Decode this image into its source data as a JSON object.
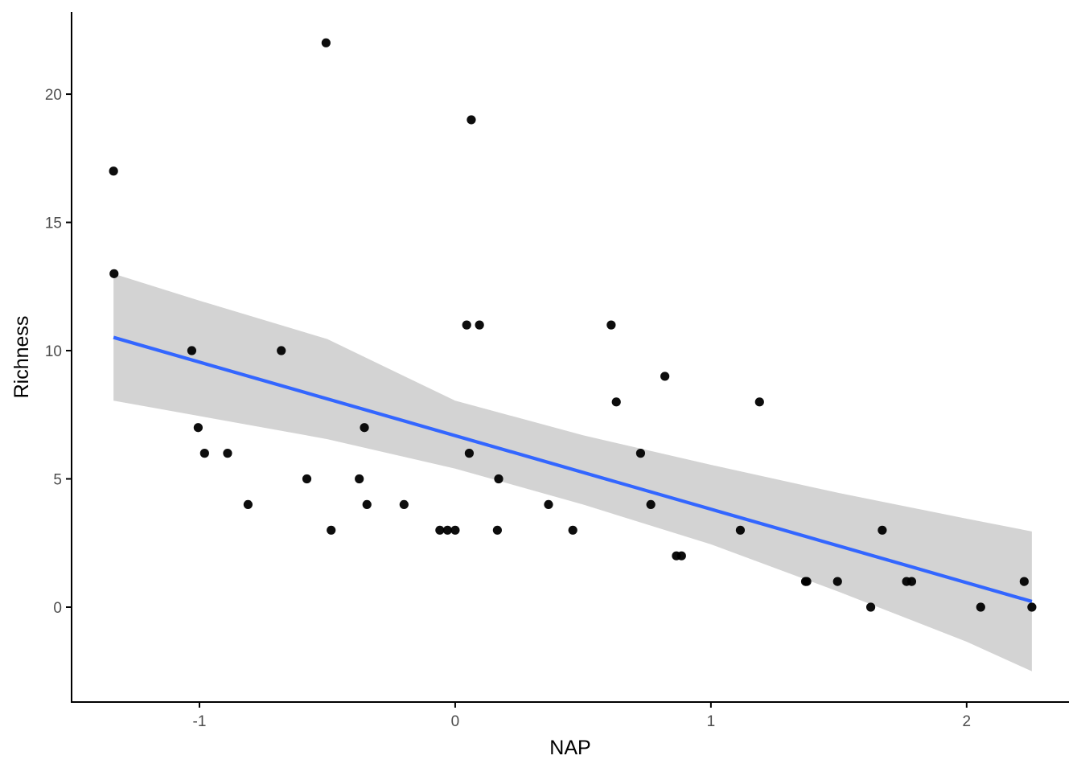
{
  "chart_data": {
    "type": "scatter",
    "xlabel": "NAP",
    "ylabel": "Richness",
    "xlim": [
      -1.5,
      2.4
    ],
    "ylim": [
      -3.7,
      23.2
    ],
    "xticks": [
      {
        "value": -1,
        "label": "-1"
      },
      {
        "value": 0,
        "label": "0"
      },
      {
        "value": 1,
        "label": "1"
      },
      {
        "value": 2,
        "label": "2"
      }
    ],
    "yticks": [
      {
        "value": 0,
        "label": "0"
      },
      {
        "value": 5,
        "label": "5"
      },
      {
        "value": 10,
        "label": "10"
      },
      {
        "value": 15,
        "label": "15"
      },
      {
        "value": 20,
        "label": "20"
      }
    ],
    "grid": false,
    "legend": "none",
    "colors": {
      "points": "#000000",
      "fit_line": "#3366ff",
      "confidence_band": "#d3d3d3",
      "axis": "#000000",
      "tick_text": "#4d4d4d"
    },
    "points": [
      {
        "x": -1.336,
        "y": 17
      },
      {
        "x": -1.334,
        "y": 13
      },
      {
        "x": -1.03,
        "y": 10
      },
      {
        "x": -1.005,
        "y": 7
      },
      {
        "x": -0.98,
        "y": 6
      },
      {
        "x": -0.89,
        "y": 6
      },
      {
        "x": -0.81,
        "y": 4
      },
      {
        "x": -0.68,
        "y": 10
      },
      {
        "x": -0.58,
        "y": 5
      },
      {
        "x": -0.505,
        "y": 22
      },
      {
        "x": -0.485,
        "y": 3
      },
      {
        "x": -0.375,
        "y": 5
      },
      {
        "x": -0.355,
        "y": 7
      },
      {
        "x": -0.345,
        "y": 4
      },
      {
        "x": -0.2,
        "y": 4
      },
      {
        "x": -0.06,
        "y": 3
      },
      {
        "x": -0.03,
        "y": 3
      },
      {
        "x": 0.0,
        "y": 3
      },
      {
        "x": 0.045,
        "y": 11
      },
      {
        "x": 0.055,
        "y": 6
      },
      {
        "x": 0.063,
        "y": 19
      },
      {
        "x": 0.095,
        "y": 11
      },
      {
        "x": 0.165,
        "y": 3
      },
      {
        "x": 0.17,
        "y": 5
      },
      {
        "x": 0.365,
        "y": 4
      },
      {
        "x": 0.46,
        "y": 3
      },
      {
        "x": 0.61,
        "y": 11
      },
      {
        "x": 0.63,
        "y": 8
      },
      {
        "x": 0.725,
        "y": 6
      },
      {
        "x": 0.765,
        "y": 4
      },
      {
        "x": 0.82,
        "y": 9
      },
      {
        "x": 0.865,
        "y": 2
      },
      {
        "x": 0.885,
        "y": 2
      },
      {
        "x": 1.115,
        "y": 3
      },
      {
        "x": 1.19,
        "y": 8
      },
      {
        "x": 1.37,
        "y": 1
      },
      {
        "x": 1.375,
        "y": 1
      },
      {
        "x": 1.495,
        "y": 1
      },
      {
        "x": 1.625,
        "y": 0
      },
      {
        "x": 1.67,
        "y": 3
      },
      {
        "x": 1.765,
        "y": 1
      },
      {
        "x": 1.785,
        "y": 1
      },
      {
        "x": 2.055,
        "y": 0
      },
      {
        "x": 2.225,
        "y": 1
      },
      {
        "x": 2.255,
        "y": 0
      }
    ],
    "fit": {
      "method": "lm",
      "x_range": [
        -1.336,
        2.255
      ],
      "intercept": 6.686,
      "slope": -2.867,
      "ci_band": [
        {
          "x": -1.336,
          "lower": 8.05,
          "upper": 13.0
        },
        {
          "x": -1.0,
          "lower": 7.45,
          "upper": 11.95
        },
        {
          "x": -0.5,
          "lower": 6.55,
          "upper": 10.45
        },
        {
          "x": 0.0,
          "lower": 5.4,
          "upper": 8.05
        },
        {
          "x": 0.5,
          "lower": 4.0,
          "upper": 6.7
        },
        {
          "x": 1.0,
          "lower": 2.45,
          "upper": 5.55
        },
        {
          "x": 1.5,
          "lower": 0.6,
          "upper": 4.45
        },
        {
          "x": 2.0,
          "lower": -1.35,
          "upper": 3.45
        },
        {
          "x": 2.255,
          "lower": -2.5,
          "upper": 2.95
        }
      ]
    }
  }
}
